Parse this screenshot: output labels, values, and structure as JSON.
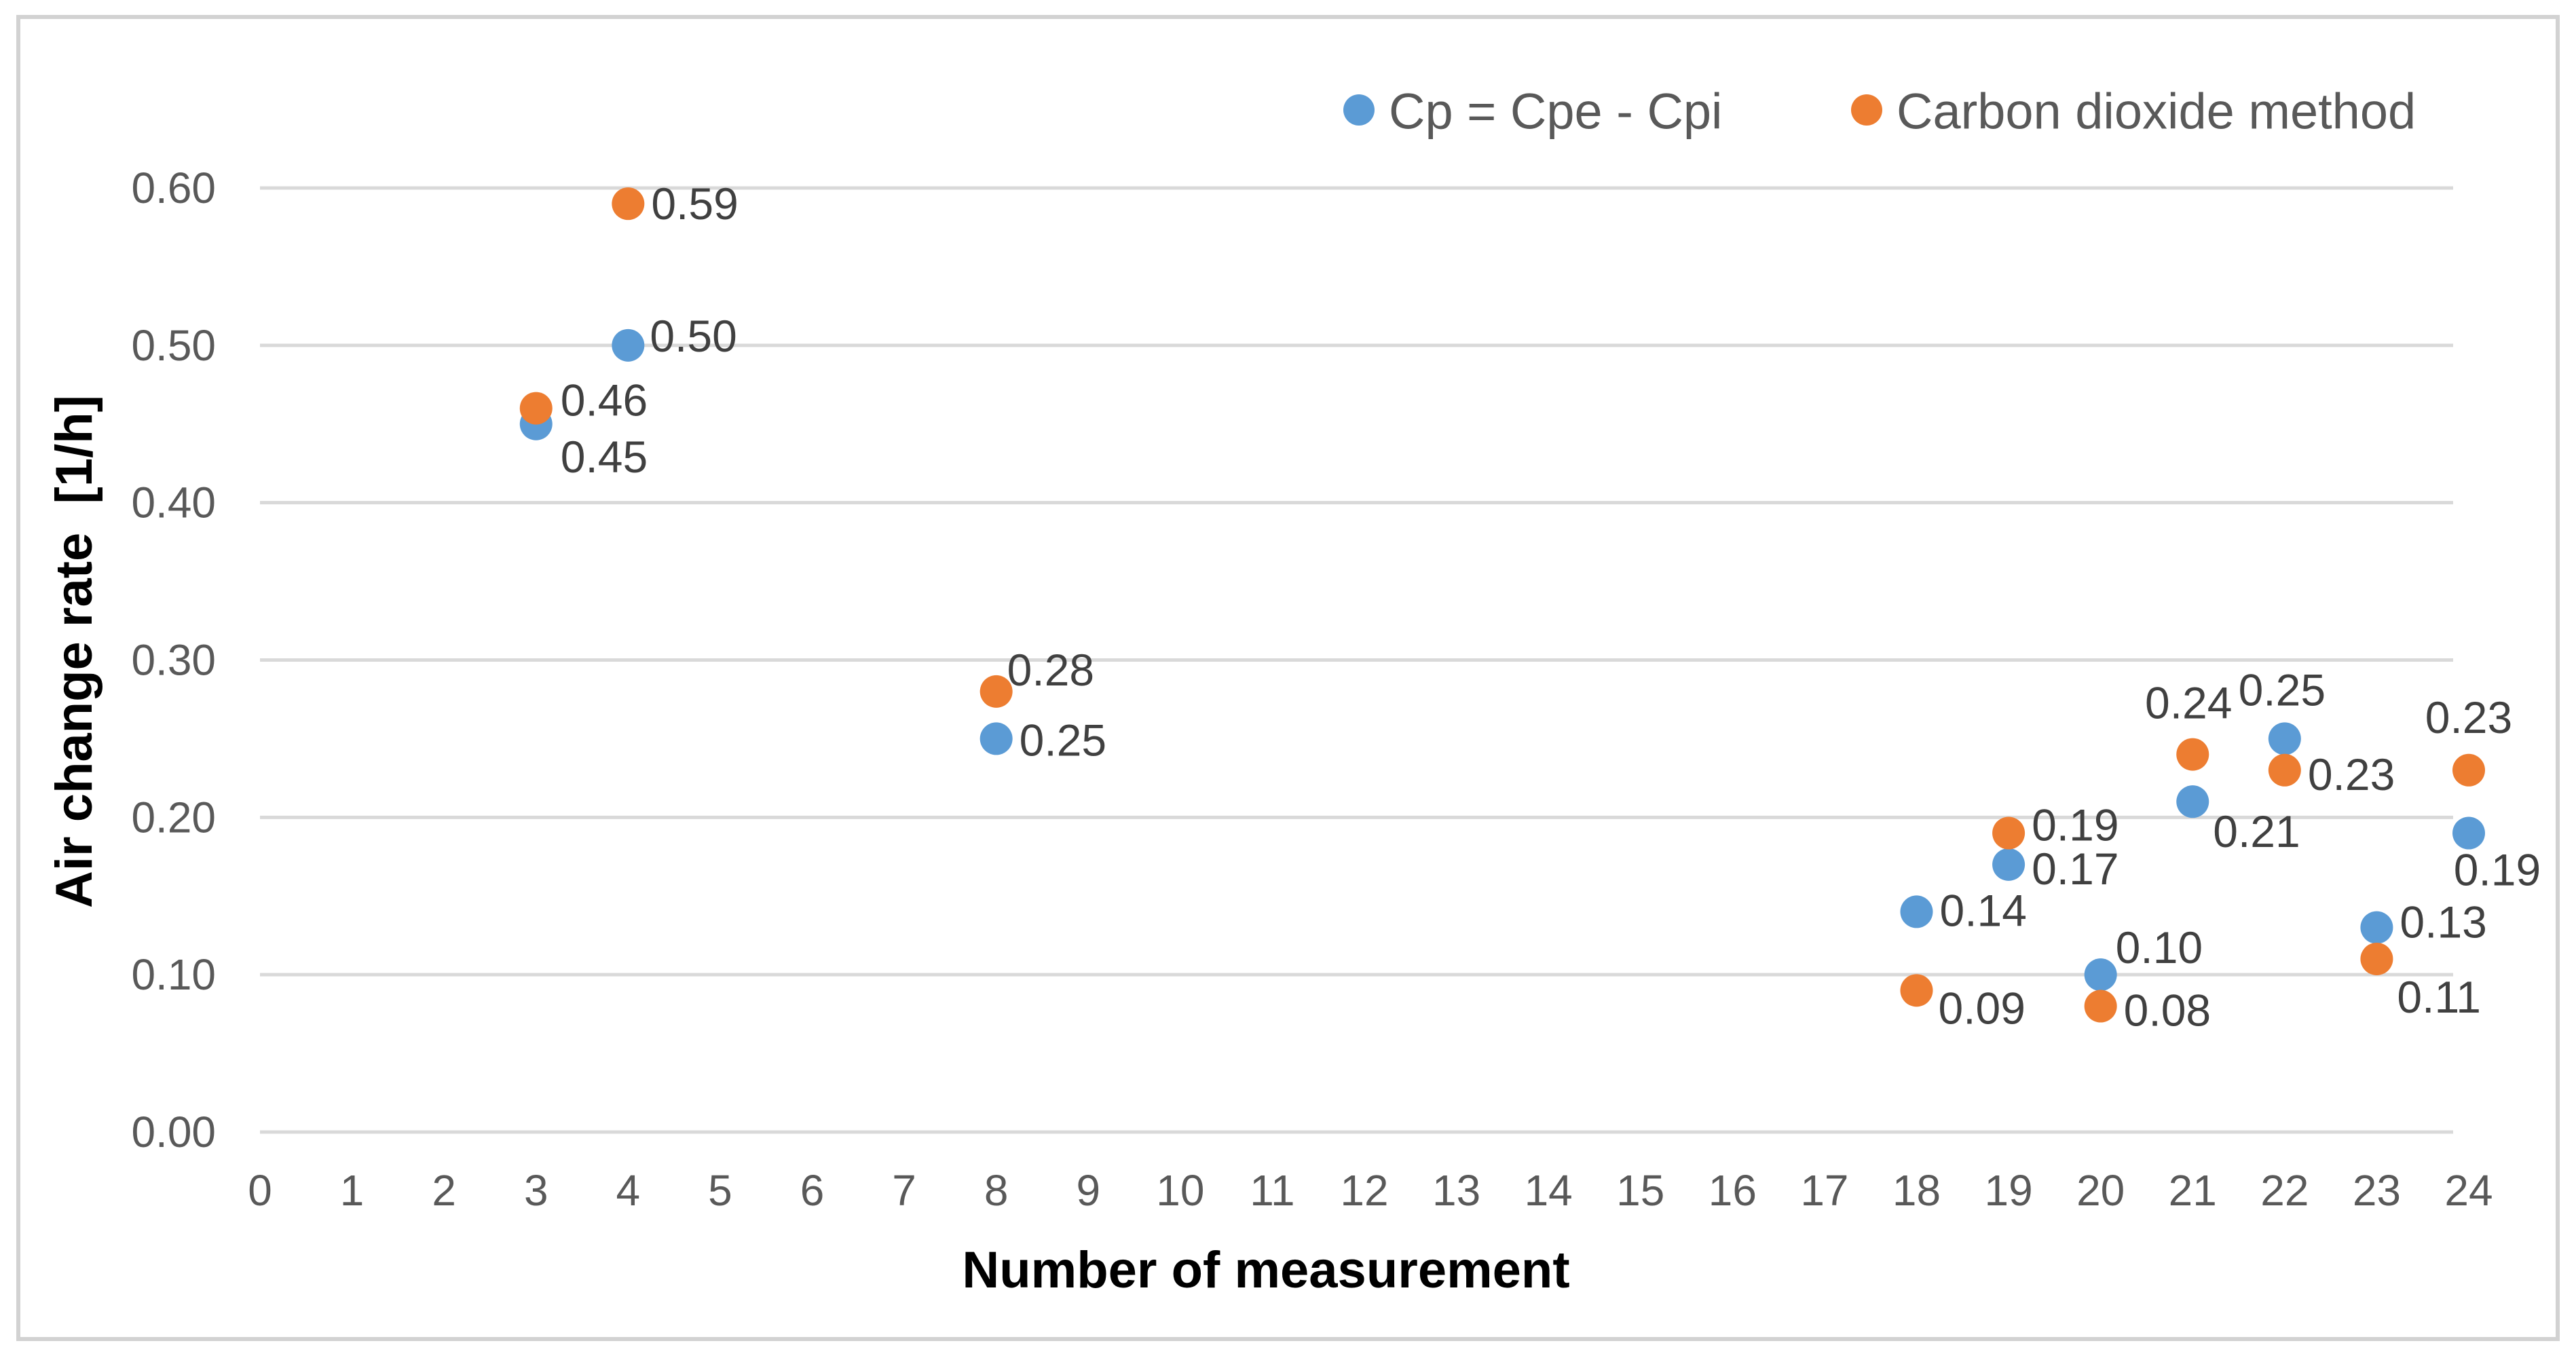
{
  "chart_data": {
    "type": "scatter",
    "title": "",
    "xlabel": "Number of measurement",
    "ylabel": "Air change rate  [1/h]",
    "xlim": [
      0,
      24
    ],
    "ylim": [
      0.0,
      0.6
    ],
    "x_tick_step": 1,
    "y_tick_step": 0.1,
    "x_tick_labels": [
      "0",
      "1",
      "2",
      "3",
      "4",
      "5",
      "6",
      "7",
      "8",
      "9",
      "10",
      "11",
      "12",
      "13",
      "14",
      "15",
      "16",
      "17",
      "18",
      "19",
      "20",
      "21",
      "22",
      "23",
      "24"
    ],
    "y_tick_labels": [
      "0.00",
      "0.10",
      "0.20",
      "0.30",
      "0.40",
      "0.50",
      "0.60"
    ],
    "grid": "horizontal-only",
    "gridline_color": "#D9D9D9",
    "tick_label_color": "#595959",
    "data_label_color": "#404040",
    "axis_title_color": "#000000",
    "legend_position": "top",
    "legend": [
      "Cp = Cpe - Cpi",
      "Carbon dioxide method"
    ],
    "series": [
      {
        "name": "Cp = Cpe - Cpi",
        "color": "#5B9BD5",
        "points": [
          {
            "x": 3,
            "y": 0.45,
            "label": "0.45",
            "dx": 36,
            "dy": 48,
            "anchor": "start"
          },
          {
            "x": 4,
            "y": 0.5,
            "label": "0.50",
            "dx": 32,
            "dy": -14,
            "anchor": "start"
          },
          {
            "x": 8,
            "y": 0.25,
            "label": "0.25",
            "dx": 34,
            "dy": 2,
            "anchor": "start"
          },
          {
            "x": 18,
            "y": 0.14,
            "label": "0.14",
            "dx": 34,
            "dy": -2,
            "anchor": "start"
          },
          {
            "x": 19,
            "y": 0.17,
            "label": "0.17",
            "dx": 34,
            "dy": 6,
            "anchor": "start"
          },
          {
            "x": 20,
            "y": 0.1,
            "label": "0.10",
            "dx": 22,
            "dy": -40,
            "anchor": "start"
          },
          {
            "x": 21,
            "y": 0.21,
            "label": "0.21",
            "dx": 30,
            "dy": 44,
            "anchor": "start"
          },
          {
            "x": 22,
            "y": 0.25,
            "label": "0.25",
            "dx": -4,
            "dy": -72,
            "anchor": "middle"
          },
          {
            "x": 23,
            "y": 0.13,
            "label": "0.13",
            "dx": 34,
            "dy": -8,
            "anchor": "start"
          },
          {
            "x": 24,
            "y": 0.19,
            "label": "0.19",
            "dx": 42,
            "dy": 54,
            "anchor": "middle"
          }
        ]
      },
      {
        "name": "Carbon dioxide method",
        "color": "#ED7D31",
        "points": [
          {
            "x": 3,
            "y": 0.46,
            "label": "0.46",
            "dx": 36,
            "dy": -12,
            "anchor": "start"
          },
          {
            "x": 4,
            "y": 0.59,
            "label": "0.59",
            "dx": 34,
            "dy": 0,
            "anchor": "start"
          },
          {
            "x": 8,
            "y": 0.28,
            "label": "0.28",
            "dx": 16,
            "dy": -32,
            "anchor": "start"
          },
          {
            "x": 18,
            "y": 0.09,
            "label": "0.09",
            "dx": 32,
            "dy": 26,
            "anchor": "start"
          },
          {
            "x": 19,
            "y": 0.19,
            "label": "0.19",
            "dx": 34,
            "dy": -12,
            "anchor": "start"
          },
          {
            "x": 20,
            "y": 0.08,
            "label": "0.08",
            "dx": 34,
            "dy": 6,
            "anchor": "start"
          },
          {
            "x": 21,
            "y": 0.24,
            "label": "0.24",
            "dx": -6,
            "dy": -76,
            "anchor": "middle"
          },
          {
            "x": 22,
            "y": 0.23,
            "label": "0.23",
            "dx": 34,
            "dy": 6,
            "anchor": "start"
          },
          {
            "x": 23,
            "y": 0.11,
            "label": "0.11",
            "dx": 30,
            "dy": 56,
            "anchor": "start"
          },
          {
            "x": 24,
            "y": 0.23,
            "label": "0.23",
            "dx": 0,
            "dy": -78,
            "anchor": "middle"
          }
        ]
      }
    ]
  },
  "frame": {
    "border_color": "#D2D2D2",
    "background": "#FFFFFF"
  }
}
